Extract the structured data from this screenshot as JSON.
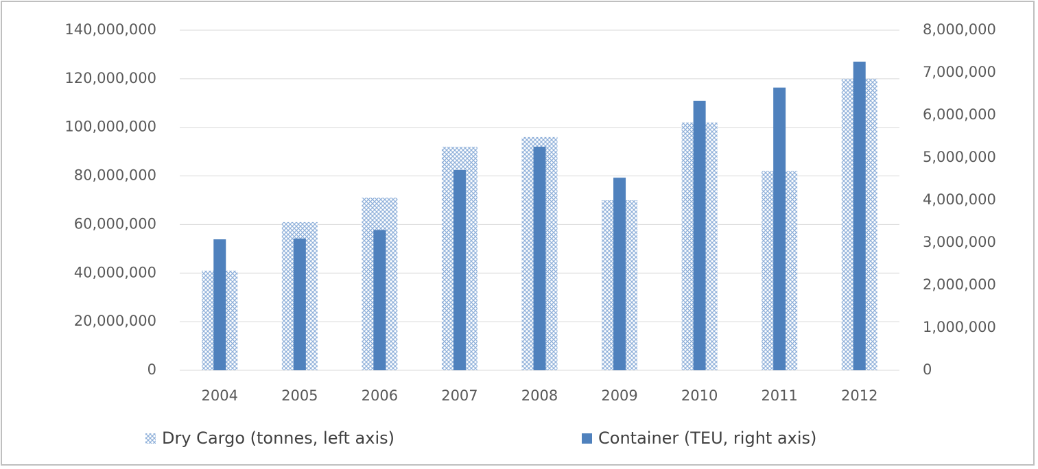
{
  "chart_data": {
    "type": "bar",
    "categories": [
      "2004",
      "2005",
      "2006",
      "2007",
      "2008",
      "2009",
      "2010",
      "2011",
      "2012"
    ],
    "series": [
      {
        "name": "Dry Cargo (tonnes, left axis)",
        "color": "#4f81bd",
        "pattern": "crosshatch",
        "values": [
          41000000,
          61000000,
          71000000,
          92000000,
          96000000,
          70000000,
          102000000,
          82000000,
          120000000
        ]
      },
      {
        "name": "Container (TEU, right axis)",
        "color": "#4f81bd",
        "axis": "y2",
        "values": [
          3080000,
          3100000,
          3300000,
          4710000,
          5260000,
          4530000,
          6340000,
          6650000,
          7260000
        ]
      }
    ],
    "ylim": [
      0,
      140000000
    ],
    "yticks": [
      0,
      {
        "value": 20000000,
        "label": "20,000,000"
      },
      {
        "value": 40000000,
        "label": "40,000,000"
      },
      {
        "value": 60000000,
        "label": "60,000,000"
      },
      {
        "value": 80000000,
        "label": "80,000,000"
      },
      {
        "value": 100000000,
        "label": "100,000,000"
      },
      {
        "value": 120000000,
        "label": "120,000,000"
      },
      {
        "value": 140000000,
        "label": "140,000,000"
      }
    ],
    "y2lim": [
      0,
      8000000
    ],
    "y2ticks": [
      0,
      {
        "value": 1000000,
        "label": "1,000,000"
      },
      {
        "value": 2000000,
        "label": "2,000,000"
      },
      {
        "value": 3000000,
        "label": "3,000,000"
      },
      {
        "value": 4000000,
        "label": "4,000,000"
      },
      {
        "value": 5000000,
        "label": "5,000,000"
      },
      {
        "value": 6000000,
        "label": "6,000,000"
      },
      {
        "value": 7000000,
        "label": "7,000,000"
      },
      {
        "value": 8000000,
        "label": "8,000,000"
      }
    ],
    "grid": true,
    "legend": "bottom"
  }
}
